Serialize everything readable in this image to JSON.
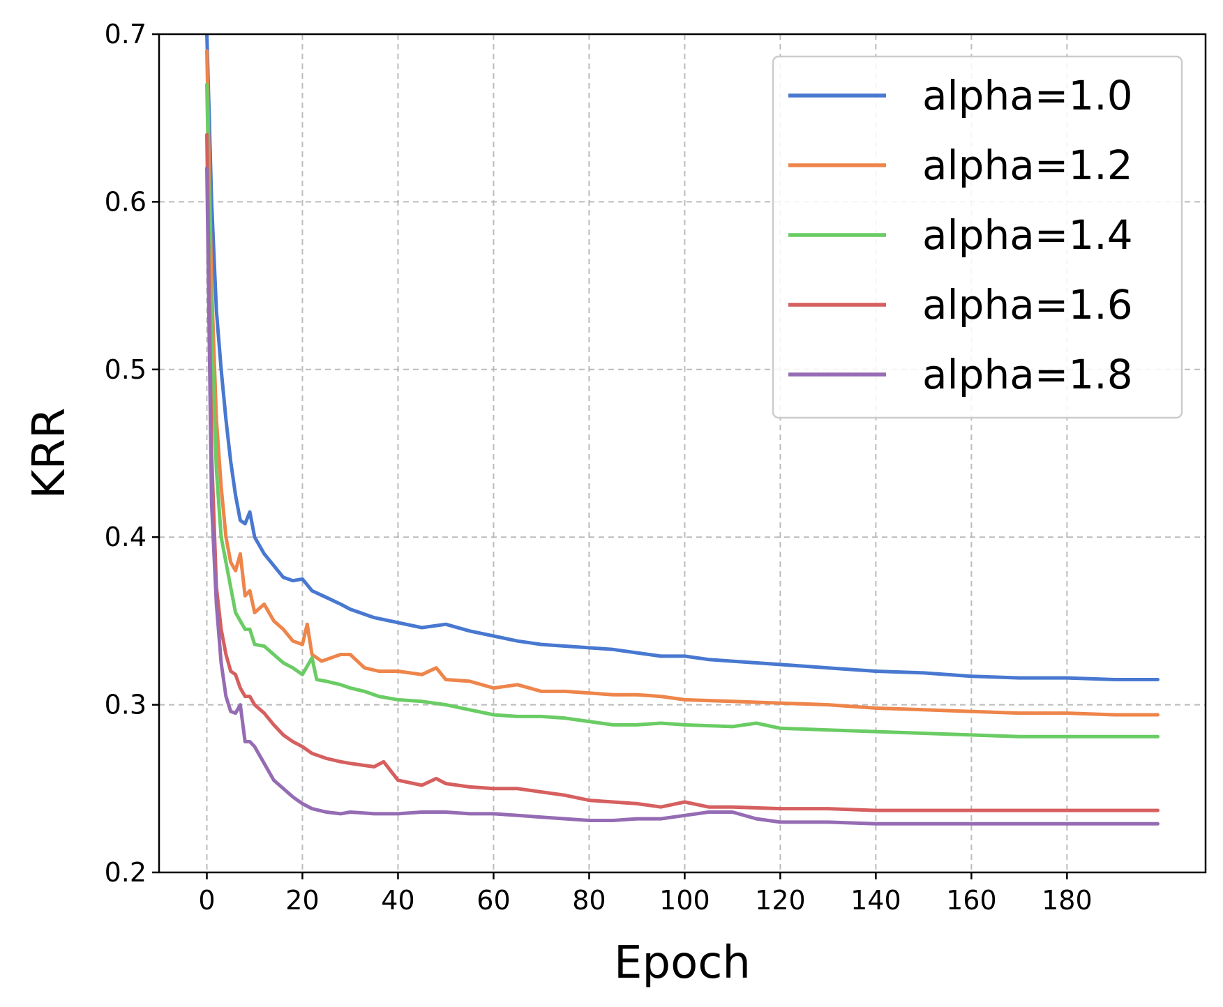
{
  "chart_data": {
    "type": "line",
    "title": "",
    "xlabel": "Epoch",
    "ylabel": "KRR",
    "xlim": [
      -10,
      209
    ],
    "ylim": [
      0.2,
      0.7
    ],
    "xticks": [
      "0",
      "20",
      "40",
      "60",
      "80",
      "100",
      "120",
      "140",
      "160",
      "180"
    ],
    "xtick_values": [
      0,
      20,
      40,
      60,
      80,
      100,
      120,
      140,
      160,
      180
    ],
    "yticks": [
      "0.2",
      "0.3",
      "0.4",
      "0.5",
      "0.6",
      "0.7"
    ],
    "ytick_values": [
      0.2,
      0.3,
      0.4,
      0.5,
      0.6,
      0.7
    ],
    "grid": true,
    "legend_position": "top-right",
    "series": [
      {
        "name": "alpha=1.0",
        "color": "#4878d0",
        "x": [
          0,
          1,
          2,
          3,
          4,
          5,
          6,
          7,
          8,
          9,
          10,
          12,
          14,
          16,
          18,
          20,
          22,
          25,
          28,
          30,
          35,
          40,
          45,
          50,
          55,
          60,
          65,
          70,
          75,
          80,
          85,
          90,
          95,
          100,
          105,
          110,
          115,
          120,
          125,
          130,
          140,
          150,
          160,
          170,
          180,
          190,
          199
        ],
        "y": [
          0.7,
          0.6,
          0.535,
          0.5,
          0.47,
          0.445,
          0.425,
          0.41,
          0.408,
          0.415,
          0.4,
          0.39,
          0.383,
          0.376,
          0.374,
          0.375,
          0.368,
          0.364,
          0.36,
          0.357,
          0.352,
          0.349,
          0.346,
          0.348,
          0.344,
          0.341,
          0.338,
          0.336,
          0.335,
          0.334,
          0.333,
          0.331,
          0.329,
          0.329,
          0.327,
          0.326,
          0.325,
          0.324,
          0.323,
          0.322,
          0.32,
          0.319,
          0.317,
          0.316,
          0.316,
          0.315,
          0.315
        ]
      },
      {
        "name": "alpha=1.2",
        "color": "#ee854a",
        "x": [
          0,
          1,
          2,
          3,
          4,
          5,
          6,
          7,
          8,
          9,
          10,
          12,
          14,
          16,
          18,
          20,
          21,
          22,
          24,
          26,
          28,
          30,
          33,
          36,
          40,
          45,
          48,
          50,
          55,
          60,
          65,
          70,
          75,
          80,
          85,
          90,
          95,
          100,
          110,
          120,
          130,
          140,
          150,
          160,
          170,
          180,
          190,
          199
        ],
        "y": [
          0.69,
          0.55,
          0.47,
          0.43,
          0.4,
          0.385,
          0.38,
          0.39,
          0.365,
          0.368,
          0.355,
          0.36,
          0.35,
          0.345,
          0.338,
          0.336,
          0.348,
          0.33,
          0.326,
          0.328,
          0.33,
          0.33,
          0.322,
          0.32,
          0.32,
          0.318,
          0.322,
          0.315,
          0.314,
          0.31,
          0.312,
          0.308,
          0.308,
          0.307,
          0.306,
          0.306,
          0.305,
          0.303,
          0.302,
          0.301,
          0.3,
          0.298,
          0.297,
          0.296,
          0.295,
          0.295,
          0.294,
          0.294
        ]
      },
      {
        "name": "alpha=1.4",
        "color": "#6acc64",
        "x": [
          0,
          1,
          2,
          3,
          4,
          5,
          6,
          7,
          8,
          9,
          10,
          12,
          14,
          16,
          18,
          20,
          22,
          23,
          25,
          28,
          30,
          33,
          36,
          40,
          45,
          50,
          55,
          60,
          65,
          70,
          75,
          80,
          85,
          90,
          95,
          100,
          110,
          115,
          120,
          130,
          140,
          150,
          160,
          170,
          180,
          190,
          199
        ],
        "y": [
          0.67,
          0.52,
          0.44,
          0.4,
          0.385,
          0.37,
          0.355,
          0.35,
          0.345,
          0.345,
          0.336,
          0.335,
          0.33,
          0.325,
          0.322,
          0.318,
          0.328,
          0.315,
          0.314,
          0.312,
          0.31,
          0.308,
          0.305,
          0.303,
          0.302,
          0.3,
          0.297,
          0.294,
          0.293,
          0.293,
          0.292,
          0.29,
          0.288,
          0.288,
          0.289,
          0.288,
          0.287,
          0.289,
          0.286,
          0.285,
          0.284,
          0.283,
          0.282,
          0.281,
          0.281,
          0.281,
          0.281
        ]
      },
      {
        "name": "alpha=1.6",
        "color": "#d65f5f",
        "x": [
          0,
          1,
          2,
          3,
          4,
          5,
          6,
          7,
          8,
          9,
          10,
          12,
          14,
          16,
          18,
          20,
          22,
          25,
          28,
          30,
          35,
          37,
          40,
          45,
          48,
          50,
          55,
          60,
          65,
          70,
          75,
          80,
          85,
          90,
          95,
          100,
          105,
          110,
          120,
          130,
          140,
          150,
          160,
          170,
          180,
          190,
          199
        ],
        "y": [
          0.64,
          0.45,
          0.37,
          0.345,
          0.33,
          0.32,
          0.318,
          0.31,
          0.305,
          0.305,
          0.3,
          0.295,
          0.288,
          0.282,
          0.278,
          0.275,
          0.271,
          0.268,
          0.266,
          0.265,
          0.263,
          0.266,
          0.255,
          0.252,
          0.256,
          0.253,
          0.251,
          0.25,
          0.25,
          0.248,
          0.246,
          0.243,
          0.242,
          0.241,
          0.239,
          0.242,
          0.239,
          0.239,
          0.238,
          0.238,
          0.237,
          0.237,
          0.237,
          0.237,
          0.237,
          0.237,
          0.237
        ]
      },
      {
        "name": "alpha=1.8",
        "color": "#956cb4",
        "x": [
          0,
          1,
          2,
          3,
          4,
          5,
          6,
          7,
          8,
          9,
          10,
          12,
          14,
          16,
          18,
          20,
          22,
          25,
          28,
          30,
          35,
          40,
          45,
          50,
          55,
          60,
          65,
          70,
          75,
          80,
          85,
          90,
          95,
          100,
          105,
          110,
          115,
          120,
          130,
          140,
          150,
          160,
          170,
          180,
          190,
          199
        ],
        "y": [
          0.62,
          0.42,
          0.36,
          0.325,
          0.305,
          0.296,
          0.295,
          0.3,
          0.278,
          0.278,
          0.275,
          0.265,
          0.255,
          0.25,
          0.245,
          0.241,
          0.238,
          0.236,
          0.235,
          0.236,
          0.235,
          0.235,
          0.236,
          0.236,
          0.235,
          0.235,
          0.234,
          0.233,
          0.232,
          0.231,
          0.231,
          0.232,
          0.232,
          0.234,
          0.236,
          0.236,
          0.232,
          0.23,
          0.23,
          0.229,
          0.229,
          0.229,
          0.229,
          0.229,
          0.229,
          0.229
        ]
      }
    ]
  }
}
